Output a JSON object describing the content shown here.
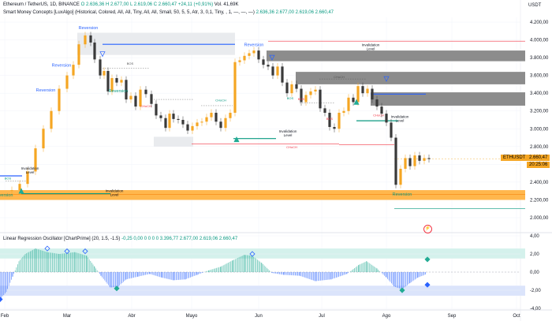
{
  "header": {
    "symbol_line": "Ethereum / TetherUS, 1D, BINANCE",
    "ohlc": "O 2.636,36  H 2.677,00  L 2.619,06  C 2.660,47  +24,11 (+0,91%)",
    "volume": "Vol. 41,69K",
    "indicator1": "Smart Money Concepts [LuxAlgo] (Historical, Colored, All, All, Tiny, All, All, Small, 50, 5, 5, Atr, 3, 0,1, Tiny, , 1, —, —, —)",
    "indicator1_values": "2.636,36  2.677,00  2.619,06  2.660,47",
    "currency": "USDT"
  },
  "price_axis": [
    "4.200,00",
    "4.000,00",
    "3.800,00",
    "3.600,00",
    "3.400,00",
    "3.200,00",
    "3.000,00",
    "2.800,00",
    "2.600,00",
    "2.400,00",
    "2.200,00",
    "2.000,00"
  ],
  "current_price": {
    "symbol": "ETHUSDT",
    "price": "2.660,47",
    "countdown": "20:25:06"
  },
  "oscillator": {
    "title": "Linear Regression Oscillator [ChartPrime] (20, 1.5, -1.5)",
    "values": "-0,25  0,00  0  0  0  0  3.396,77  2.677,00  2.619,06  2.660,47",
    "axis": [
      "4,00",
      "2,00",
      "0,00",
      "-2,00",
      "-4,00"
    ],
    "last_value": "-0,25"
  },
  "time_axis": [
    "Feb",
    "Mar",
    "Abr",
    "Mayo",
    "Jun",
    "Jul",
    "Ago",
    "Sep",
    "Oct"
  ],
  "annotations": {
    "reversion": "Reversion",
    "invalidation": "Invalidation",
    "level": "Level",
    "choch": "CHoCH",
    "bos": "BOS"
  },
  "colors": {
    "bull": "#089981",
    "bear": "#f23645",
    "candle_up": "#f5a623",
    "candle_down": "#3a3a3a",
    "reversion": "#2962ff",
    "ob_grey": "#7a7a7a",
    "ob_orange": "#ffb74d"
  }
}
